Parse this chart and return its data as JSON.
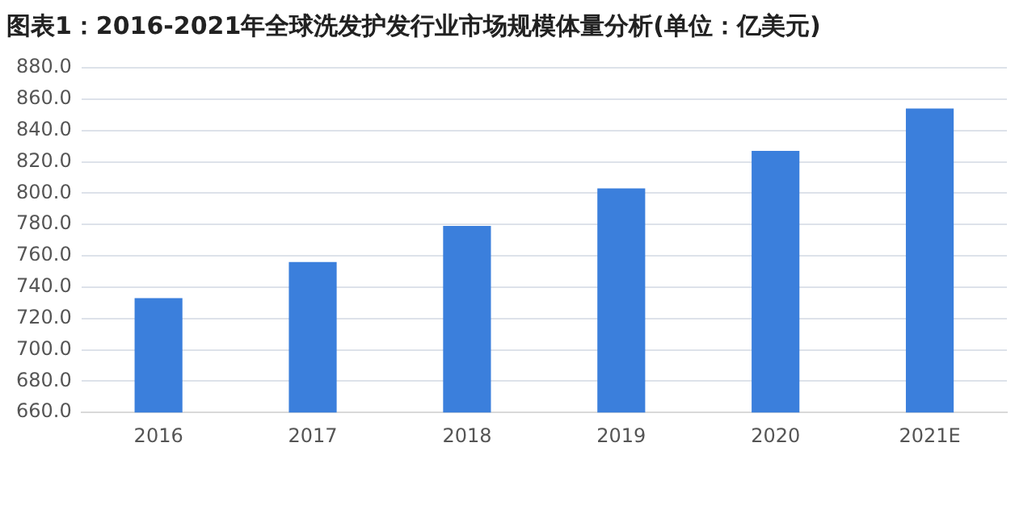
{
  "chart_data": {
    "type": "bar",
    "title": "图表1：2016-2021年全球洗发护发行业市场规模体量分析(单位：亿美元)",
    "categories": [
      "2016",
      "2017",
      "2018",
      "2019",
      "2020",
      "2021E"
    ],
    "values": [
      733,
      756,
      779,
      803,
      827,
      854
    ],
    "color": "#3b7fdc",
    "ylim": [
      660,
      880
    ],
    "yticks": [
      {
        "value": 660,
        "label": "660.0"
      },
      {
        "value": 680,
        "label": "680.0"
      },
      {
        "value": 700,
        "label": "700.0"
      },
      {
        "value": 720,
        "label": "720.0"
      },
      {
        "value": 740,
        "label": "740.0"
      },
      {
        "value": 760,
        "label": "760.0"
      },
      {
        "value": 780,
        "label": "780.0"
      },
      {
        "value": 800,
        "label": "800.0"
      },
      {
        "value": 820,
        "label": "820.0"
      },
      {
        "value": 840,
        "label": "840.0"
      },
      {
        "value": 860,
        "label": "860.0"
      },
      {
        "value": 880,
        "label": "880.0"
      }
    ],
    "grid": "y",
    "legend": false
  }
}
